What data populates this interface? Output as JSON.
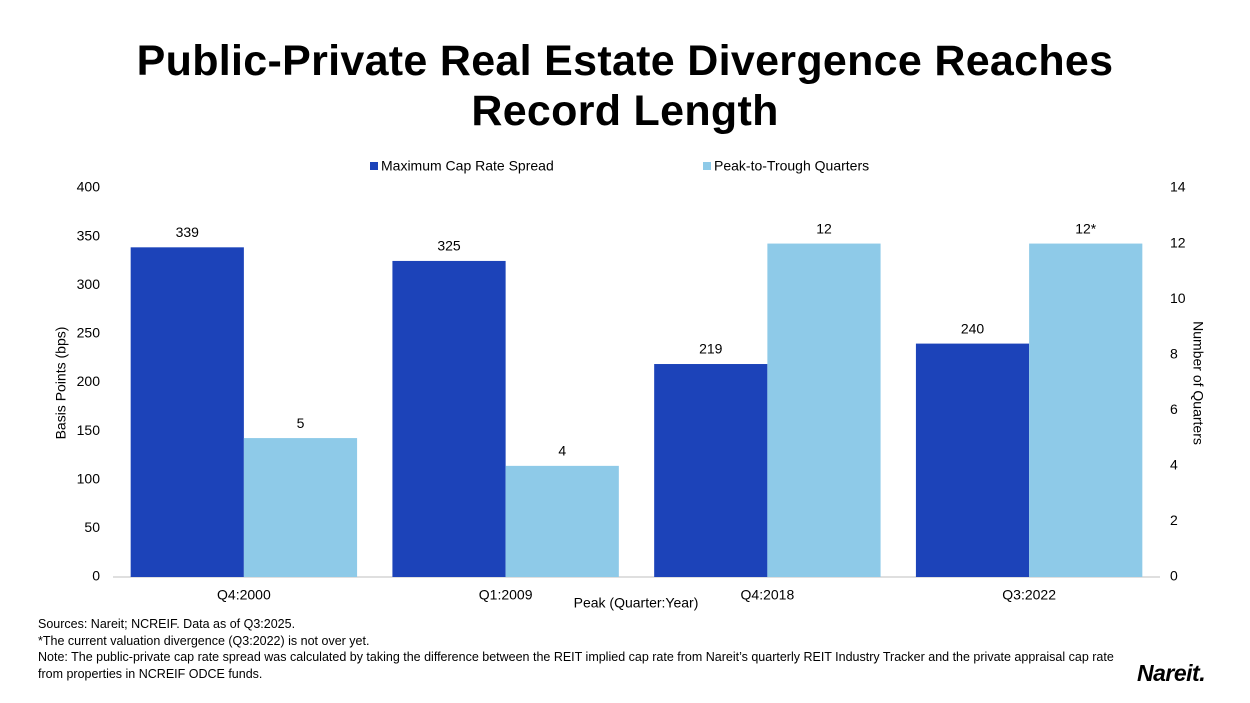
{
  "chart_data": {
    "type": "bar",
    "title": "Public-Private Real Estate Divergence Reaches Record Length",
    "categories": [
      "Q4:2000",
      "Q1:2009",
      "Q4:2018",
      "Q3:2022"
    ],
    "series": [
      {
        "name": "Maximum Cap Rate Spread",
        "color": "#1c43b9",
        "values": [
          339,
          325,
          219,
          240
        ]
      },
      {
        "name": "Peak-to-Trough Quarters",
        "color": "#8ecae8",
        "values": [
          5,
          4,
          12,
          12
        ],
        "value_labels": [
          "5",
          "4",
          "12",
          "12*"
        ],
        "axis": "y2"
      }
    ],
    "ylabel": "Basis Points (bps)",
    "y2label": "Number of Quarters",
    "xlabel": "Peak (Quarter:Year)",
    "ylim": [
      0,
      400
    ],
    "yticks": [
      0,
      50,
      100,
      150,
      200,
      250,
      300,
      350,
      400
    ],
    "y2lim": [
      0,
      14
    ],
    "y2ticks": [
      0,
      2,
      4,
      6,
      8,
      10,
      12,
      14
    ],
    "grid": false,
    "legend": "top"
  },
  "notes": [
    "Sources: Nareit; NCREIF. Data as of Q3:2025.",
    "*The current valuation divergence (Q3:2022) is not over yet.",
    "Note: The public-private cap rate spread was calculated by taking the difference between the REIT implied cap rate from Nareit’s quarterly REIT Industry Tracker and the private appraisal cap rate from properties in NCREIF ODCE funds."
  ],
  "logo": "Nareit."
}
